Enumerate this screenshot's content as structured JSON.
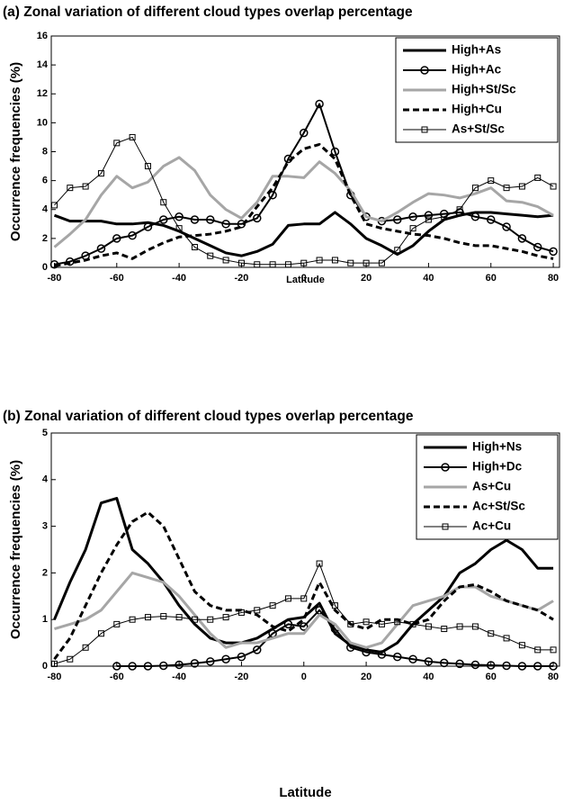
{
  "chart_data": [
    {
      "type": "line",
      "title": "(a) Zonal variation  of different cloud types overlap percentage",
      "x_label": "Latitude",
      "y_label": "Occurrence frequencies (%)",
      "x": [
        -80,
        -75,
        -70,
        -65,
        -60,
        -55,
        -50,
        -45,
        -40,
        -35,
        -30,
        -25,
        -20,
        -15,
        -10,
        -5,
        0,
        5,
        10,
        15,
        20,
        25,
        30,
        35,
        40,
        45,
        50,
        55,
        60,
        65,
        70,
        75,
        80
      ],
      "xlim": [
        -81,
        82
      ],
      "xticks": [
        -80,
        -60,
        -40,
        -20,
        0,
        20,
        40,
        60,
        80
      ],
      "ylim": [
        0,
        16
      ],
      "yticks": [
        0,
        2,
        4,
        6,
        8,
        10,
        12,
        14,
        16
      ],
      "legend": "upper right",
      "series": [
        {
          "name": "High+As",
          "color": "#000000",
          "line_width": 3,
          "line_style": "solid",
          "marker": "none",
          "values": [
            3.6,
            3.2,
            3.2,
            3.2,
            3.0,
            3.0,
            3.1,
            2.9,
            2.5,
            2.0,
            1.5,
            1.0,
            0.8,
            1.1,
            1.6,
            2.9,
            3.0,
            3.0,
            3.8,
            3.0,
            2.0,
            1.5,
            0.9,
            1.5,
            2.5,
            3.3,
            3.6,
            3.8,
            3.8,
            3.7,
            3.6,
            3.5,
            3.6
          ]
        },
        {
          "name": "High+Ac",
          "color": "#000000",
          "line_width": 2,
          "line_style": "solid",
          "marker": "circle",
          "values": [
            0.2,
            0.4,
            0.8,
            1.3,
            2.0,
            2.2,
            2.8,
            3.3,
            3.5,
            3.3,
            3.3,
            3.0,
            3.0,
            3.4,
            5.0,
            7.5,
            9.3,
            11.3,
            8.0,
            5.0,
            3.5,
            3.2,
            3.3,
            3.5,
            3.6,
            3.7,
            3.8,
            3.5,
            3.3,
            2.8,
            2.0,
            1.4,
            1.1
          ]
        },
        {
          "name": "High+St/Sc",
          "color": "#a6a6a6",
          "line_width": 3,
          "line_style": "solid",
          "marker": "none",
          "values": [
            1.4,
            2.3,
            3.3,
            5.0,
            6.3,
            5.5,
            5.9,
            7.0,
            7.6,
            6.7,
            5.0,
            4.0,
            3.4,
            4.5,
            6.3,
            6.3,
            6.2,
            7.3,
            6.5,
            5.3,
            3.5,
            3.2,
            3.8,
            4.5,
            5.1,
            5.0,
            4.8,
            5.1,
            5.5,
            4.6,
            4.5,
            4.2,
            3.6
          ]
        },
        {
          "name": "High+Cu",
          "color": "#000000",
          "line_width": 3,
          "line_style": "dashed",
          "marker": "none",
          "values": [
            0.1,
            0.3,
            0.5,
            0.8,
            1.0,
            0.6,
            1.2,
            1.7,
            2.1,
            2.2,
            2.3,
            2.5,
            2.8,
            4.2,
            5.5,
            7.3,
            8.2,
            8.5,
            7.5,
            5.0,
            3.0,
            2.7,
            2.5,
            2.3,
            2.2,
            2.0,
            1.7,
            1.5,
            1.5,
            1.3,
            1.1,
            0.8,
            0.6
          ]
        },
        {
          "name": "As+St/Sc",
          "color": "#000000",
          "line_width": 1,
          "line_style": "solid",
          "marker": "square",
          "values": [
            4.3,
            5.5,
            5.6,
            6.5,
            8.6,
            9.0,
            7.0,
            4.5,
            2.7,
            1.4,
            0.8,
            0.5,
            0.3,
            0.2,
            0.2,
            0.2,
            0.3,
            0.5,
            0.5,
            0.3,
            0.3,
            0.3,
            1.2,
            2.7,
            3.3,
            3.5,
            4.0,
            5.5,
            6.0,
            5.5,
            5.6,
            6.2,
            5.6
          ]
        }
      ]
    },
    {
      "type": "line",
      "title": "(b) Zonal variation  of different cloud types overlap percentage",
      "x_label": "Latitude",
      "y_label": "Occurrence frequencies (%)",
      "x": [
        -80,
        -75,
        -70,
        -65,
        -60,
        -55,
        -50,
        -45,
        -40,
        -35,
        -30,
        -25,
        -20,
        -15,
        -10,
        -5,
        0,
        5,
        10,
        15,
        20,
        25,
        30,
        35,
        40,
        45,
        50,
        55,
        60,
        65,
        70,
        75,
        80
      ],
      "xlim": [
        -81,
        82
      ],
      "xticks": [
        -80,
        -60,
        -40,
        -20,
        0,
        20,
        40,
        60,
        80
      ],
      "ylim": [
        0,
        5
      ],
      "yticks": [
        0,
        1,
        2,
        3,
        4,
        5
      ],
      "legend": "upper right",
      "series": [
        {
          "name": "High+Ns",
          "color": "#000000",
          "line_width": 3,
          "line_style": "solid",
          "marker": "none",
          "values": [
            1.0,
            1.8,
            2.5,
            3.5,
            3.6,
            2.5,
            2.2,
            1.8,
            1.3,
            0.9,
            0.6,
            0.5,
            0.5,
            0.6,
            0.8,
            1.0,
            1.05,
            1.35,
            0.7,
            0.45,
            0.35,
            0.3,
            0.5,
            0.9,
            1.2,
            1.5,
            2.0,
            2.2,
            2.5,
            2.7,
            2.5,
            2.1,
            2.1
          ]
        },
        {
          "name": "High+Dc",
          "color": "#000000",
          "line_width": 2,
          "line_style": "solid",
          "marker": "circle",
          "values": [
            null,
            null,
            null,
            null,
            0,
            0,
            0,
            0.01,
            0.03,
            0.06,
            0.1,
            0.15,
            0.2,
            0.35,
            0.7,
            0.9,
            0.85,
            1.2,
            0.8,
            0.4,
            0.3,
            0.25,
            0.2,
            0.15,
            0.1,
            0.07,
            0.05,
            0.03,
            0.02,
            0.01,
            0,
            0,
            0
          ]
        },
        {
          "name": "As+Cu",
          "color": "#a6a6a6",
          "line_width": 3,
          "line_style": "solid",
          "marker": "none",
          "values": [
            0.8,
            0.9,
            1.0,
            1.2,
            1.6,
            2.0,
            1.9,
            1.8,
            1.5,
            1.1,
            0.7,
            0.4,
            0.5,
            0.5,
            0.6,
            0.7,
            0.7,
            1.1,
            0.9,
            0.5,
            0.4,
            0.5,
            0.9,
            1.3,
            1.4,
            1.5,
            1.7,
            1.7,
            1.5,
            1.4,
            1.3,
            1.2,
            1.4
          ]
        },
        {
          "name": "Ac+St/Sc",
          "color": "#000000",
          "line_width": 3,
          "line_style": "dashed",
          "marker": "none",
          "values": [
            0.15,
            0.6,
            1.3,
            2.0,
            2.6,
            3.1,
            3.3,
            3.0,
            2.3,
            1.6,
            1.3,
            1.2,
            1.2,
            1.1,
            0.85,
            0.75,
            1.0,
            1.8,
            1.2,
            0.9,
            0.8,
            1.0,
            1.0,
            0.9,
            1.0,
            1.4,
            1.7,
            1.75,
            1.6,
            1.4,
            1.3,
            1.2,
            1.0
          ]
        },
        {
          "name": "Ac+Cu",
          "color": "#000000",
          "line_width": 1,
          "line_style": "solid",
          "marker": "square",
          "values": [
            0.05,
            0.15,
            0.4,
            0.7,
            0.9,
            1.0,
            1.05,
            1.07,
            1.05,
            1.0,
            1.0,
            1.05,
            1.15,
            1.2,
            1.3,
            1.45,
            1.45,
            2.2,
            1.3,
            0.9,
            0.95,
            0.9,
            0.95,
            0.9,
            0.85,
            0.8,
            0.85,
            0.85,
            0.7,
            0.6,
            0.45,
            0.35,
            0.35
          ]
        }
      ]
    }
  ]
}
